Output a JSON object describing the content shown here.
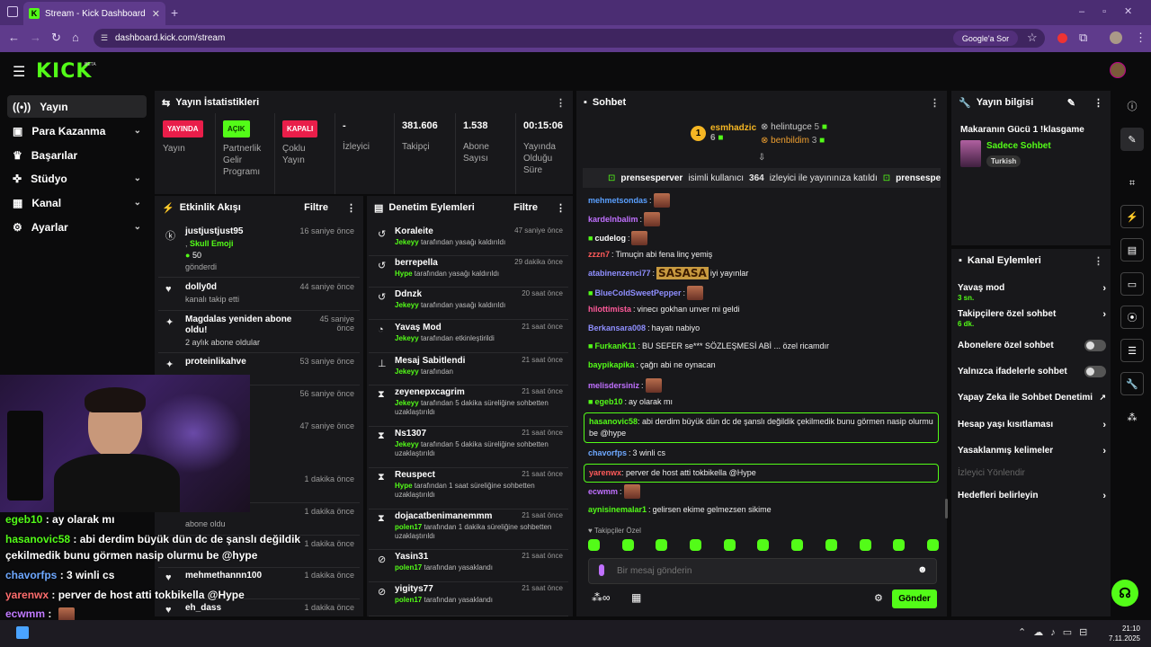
{
  "browser": {
    "tab_title": "Stream - Kick Dashboard",
    "url": "dashboard.kick.com/stream",
    "search_label": "Google'a Sor"
  },
  "nav": {
    "items": [
      {
        "label": "Yayın"
      },
      {
        "label": "Para Kazanma"
      },
      {
        "label": "Başarılar"
      },
      {
        "label": "Stüdyo"
      },
      {
        "label": "Kanal"
      },
      {
        "label": "Ayarlar"
      }
    ]
  },
  "stats": {
    "title": "Yayın İstatistikleri",
    "live_badge": "YAYINDA",
    "live_label": "Yayın",
    "partner_badge": "AÇIK",
    "partner_label": "Partnerlik Gelir Programı",
    "multi_badge": "KAPALI",
    "multi_label": "Çoklu Yayın",
    "viewers_value": "-",
    "viewers_label": "İzleyici",
    "followers_value": "381.606",
    "followers_label": "Takipçi",
    "subs_value": "1.538",
    "subs_label": "Abone Sayısı",
    "uptime_value": "00:15:06",
    "uptime_label": "Yayında Olduğu Süre"
  },
  "activity": {
    "title": "Etkinlik Akışı",
    "filter": "Filtre",
    "items": [
      {
        "name": "justjustjust95",
        "l2": "Skull Emoji",
        "l3": "50",
        "l4": "gönderdi",
        "time": "16 saniye önce"
      },
      {
        "name": "dolly0d",
        "l2": "kanalı takip etti",
        "time": "44 saniye önce"
      },
      {
        "name": "Magdalas yeniden abone oldu!",
        "l2": "2 aylık abone oldular",
        "time": "45 saniye önce"
      },
      {
        "name": "proteinlikahve",
        "time": "53 saniye önce"
      },
      {
        "time": "56 saniye önce"
      },
      {
        "time": "47 saniye önce"
      },
      {
        "time": "1 dakika önce"
      },
      {
        "time": "1 dakika önce",
        "l2": "abone oldu"
      },
      {
        "time": "1 dakika önce"
      },
      {
        "name": "mehmethannn100",
        "time": "1 dakika önce"
      },
      {
        "name": "eh_dass",
        "time": "1 dakika önce"
      }
    ]
  },
  "moderation": {
    "title": "Denetim Eylemleri",
    "filter": "Filtre",
    "items": [
      {
        "name": "Koraleite",
        "mod": "Jekeyy",
        "desc": "tarafından yasağı kaldırıldı",
        "time": "47 saniye önce"
      },
      {
        "name": "berrepella",
        "mod": "Hype",
        "desc": "tarafından yasağı kaldırıldı",
        "time": "29 dakika önce"
      },
      {
        "name": "Ddnzk",
        "mod": "Jekeyy",
        "desc": "tarafından yasağı kaldırıldı",
        "time": "20 saat önce"
      },
      {
        "name": "Yavaş Mod",
        "mod": "Jekeyy",
        "desc": "tarafından etkinleştirildi",
        "time": "21 saat önce"
      },
      {
        "name": "Mesaj Sabitlendi",
        "mod": "Jekeyy",
        "desc": "tarafından",
        "time": "21 saat önce"
      },
      {
        "name": "zeyenepxcagrim",
        "mod": "Jekeyy",
        "desc": "tarafından 5 dakika süreliğine sohbetten uzaklaştırıldı",
        "time": "21 saat önce"
      },
      {
        "name": "Ns1307",
        "mod": "Jekeyy",
        "desc": "tarafından 5 dakika süreliğine sohbetten uzaklaştırıldı",
        "time": "21 saat önce"
      },
      {
        "name": "Reuspect",
        "mod": "Hype",
        "desc": "tarafından 1 saat süreliğine sohbetten uzaklaştırıldı",
        "time": "21 saat önce"
      },
      {
        "name": "dojacatbenimanemmm",
        "mod": "polen17",
        "desc": "tarafından 1 dakika süreliğine sohbetten uzaklaştırıldı",
        "time": "21 saat önce"
      },
      {
        "name": "Yasin31",
        "mod": "polen17",
        "desc": "tarafından yasaklandı",
        "time": "21 saat önce"
      },
      {
        "name": "yigitys77",
        "mod": "polen17",
        "desc": "tarafından yasaklandı",
        "time": "21 saat önce"
      }
    ]
  },
  "chat": {
    "title": "Sohbet",
    "top1": "esmhadzic",
    "top1_count": "6",
    "top2": "helintugce",
    "top2_count": "5",
    "top3": "benbildim",
    "top3_count": "3",
    "raid_user": "prensesperver",
    "raid_text": "isimli kullanıcı",
    "raid_count": "364",
    "raid_text2": "izleyici ile yayınınıza katıldı",
    "raid_user2": "prensesperver",
    "messages": [
      {
        "user": "mehmetsondas",
        "text": "",
        "color": "#5aa0ff"
      },
      {
        "user": "kardelnbalim",
        "text": "",
        "color": "#c070ff"
      },
      {
        "user": "cudelog",
        "text": "",
        "color": "#ffffff"
      },
      {
        "user": "zzzn7",
        "text": "Timuçin abi fena linç yemiş",
        "color": "#ff5a5a"
      },
      {
        "user": "atabinenzenci77",
        "text": "iyi yayınlar",
        "color": "#8f8fff"
      },
      {
        "user": "BlueColdSweetPepper",
        "text": "",
        "color": "#8f8fff"
      },
      {
        "user": "hilottimista",
        "text": "vinecı gokhan unver mi geldi",
        "color": "#ff5a9a"
      },
      {
        "user": "Berkansara008",
        "text": "hayatı nabiyo",
        "color": "#8f8fff"
      },
      {
        "user": "FurkanK11",
        "text": "BU SEFER se*** SÖZLEŞMESİ ABİ ... özel ricamdır",
        "color": "#53fc18"
      },
      {
        "user": "baypikapika",
        "text": "çağrı abi ne oynacan",
        "color": "#53fc18"
      },
      {
        "user": "melisdersiniz",
        "text": "",
        "color": "#c070ff"
      },
      {
        "user": "egeb10",
        "text": "ay olarak mı",
        "color": "#53fc18"
      }
    ],
    "hl1_user": "hasanovic58",
    "hl1_text": "abi derdim büyük dün dc de şanslı değildik çekilmedik bunu görmen nasip olurmu be @hype",
    "m2_user": "chavorfps",
    "m2_text": "3 winli cs",
    "hl2_user": "yarenwx",
    "hl2_text": "perver de host atti tokbikella @Hype",
    "m3_user": "ecwmm",
    "m4_user": "aynisinemalar1",
    "m4_text": "gelirsen ekime gelmezsen sikime",
    "followers_only": "Takipçiler Özel",
    "placeholder": "Bir mesaj gönderin",
    "send": "Gönder",
    "sasasa": "SASASA"
  },
  "info": {
    "title": "Yayın bilgisi",
    "stream_title": "Makaranın Gücü 1 !klasgame",
    "category": "Sadece Sohbet",
    "tag": "Turkish"
  },
  "channel": {
    "title": "Kanal Eylemleri",
    "slow": "Yavaş mod",
    "slow_val": "3 sn.",
    "follow": "Takipçilere özel sohbet",
    "follow_val": "6 dk.",
    "subs": "Abonelere özel sohbet",
    "emotes": "Yalnızca ifadelerle sohbet",
    "ai": "Yapay Zeka ile Sohbet Denetimi",
    "age": "Hesap yaşı kısıtlaması",
    "banned": "Yasaklanmış kelimeler",
    "redirect": "İzleyici Yönlendir",
    "goals": "Hedefleri belirleyin"
  },
  "overlay": [
    {
      "user": "egeb10",
      "text": "ay olarak mı",
      "color": "#53fc18"
    },
    {
      "user": "hasanovic58",
      "text": "abi derdim büyük dün dc de şanslı değildik",
      "color": "#53fc18"
    },
    {
      "user": "",
      "text": "çekilmedik bunu görmen nasip olurmu be @hype",
      "color": "#fff"
    },
    {
      "user": "chavorfps",
      "text": "3 winli cs",
      "color": "#6ea8ff"
    },
    {
      "user": "yarenwx",
      "text": "perver de host atti tokbikella @Hype",
      "color": "#ff6e6e"
    },
    {
      "user": "ecwmm",
      "text": "",
      "color": "#c07aff"
    },
    {
      "user": "aynisinemalar1",
      "text": "gelirsen ekime gelmezsen sikime",
      "color": "#53fc18"
    }
  ],
  "clock": {
    "time": "21:10",
    "date": "7.11.2025"
  },
  "colors": {
    "accent": "#53fc18",
    "live": "#e91e4a",
    "browser": "#5f3b8c"
  }
}
